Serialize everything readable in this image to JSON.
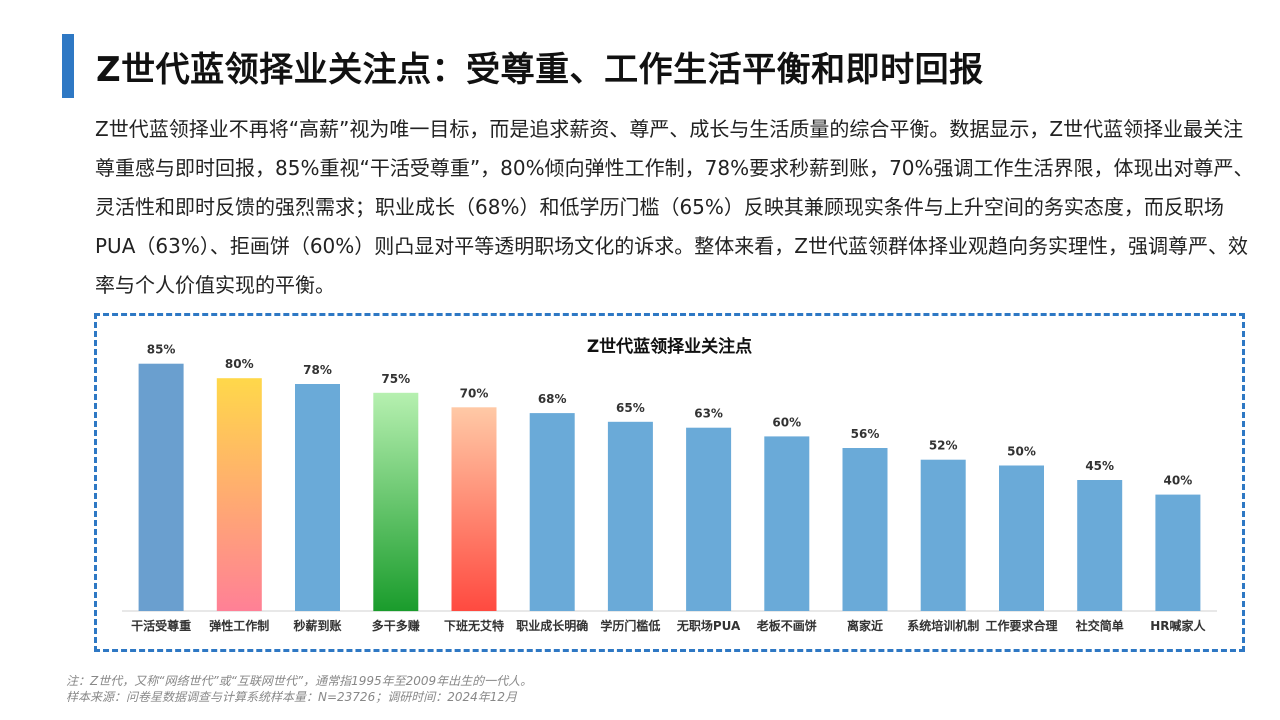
{
  "header": {
    "title": "Z世代蓝领择业关注点：受尊重、工作生活平衡和即时回报"
  },
  "intro": {
    "paragraph": "Z世代蓝领择业不再将“高薪”视为唯一目标，而是追求薪资、尊严、成长与生活质量的综合平衡。数据显示，Z世代蓝领择业最关注尊重感与即时回报，85%重视“干活受尊重”，80%倾向弹性工作制，78%要求秒薪到账，70%强调工作生活界限，体现出对尊严、灵活性和即时反馈的强烈需求；职业成长（68%）和低学历门槛（65%）反映其兼顾现实条件与上升空间的务实态度，而反职场PUA（63%）、拒画饼（60%）则凸显对平等透明职场文化的诉求。整体来看，Z世代蓝领群体择业观趋向务实理性，强调尊严、效率与个人价值实现的平衡。"
  },
  "chart_data": {
    "type": "bar",
    "title": "Z世代蓝领择业关注点",
    "categories": [
      "干活受尊重",
      "弹性工作制",
      "秒薪到账",
      "多干多赚",
      "下班无艾特",
      "职业成长明确",
      "学历门槛低",
      "无职场PUA",
      "老板不画饼",
      "离家近",
      "系统培训机制",
      "工作要求合理",
      "社交简单",
      "HR喊家人"
    ],
    "values": [
      85,
      80,
      78,
      75,
      70,
      68,
      65,
      63,
      60,
      56,
      52,
      50,
      45,
      40
    ],
    "value_labels": [
      "85%",
      "80%",
      "78%",
      "75%",
      "70%",
      "68%",
      "65%",
      "63%",
      "60%",
      "56%",
      "52%",
      "50%",
      "45%",
      "40%"
    ],
    "ylim": [
      0,
      100
    ],
    "grid": false,
    "legend": "none",
    "bar_colors": [
      "#6a9fcf",
      "gradient-yellow-pink",
      "#6aaad8",
      "gradient-lightgreen-green",
      "gradient-peach-red",
      "#6aaad8",
      "#6aaad8",
      "#6aaad8",
      "#6aaad8",
      "#6aaad8",
      "#6aaad8",
      "#6aaad8",
      "#6aaad8",
      "#6aaad8"
    ],
    "colors": {
      "default_bar": "#6aaad8",
      "first_bar": "#6a9fcf",
      "gradient_yellow_pink": [
        "#ffd84a",
        "#ff8096"
      ],
      "gradient_lightgreen_green": [
        "#b6f0b0",
        "#1a9c2c"
      ],
      "gradient_peach_red": [
        "#ffc9a6",
        "#ff4a40"
      ],
      "axis": "#d0d0d0",
      "frame": "#2e78c4",
      "accent": "#2e78c4"
    }
  },
  "footer": {
    "note": "注：Z世代，又称“网络世代”或“互联网世代”，通常指1995年至2009年出生的一代人。",
    "source": "样本来源：问卷星数据调查与计算系统样本量：N=23726；调研时间：2024年12月"
  }
}
